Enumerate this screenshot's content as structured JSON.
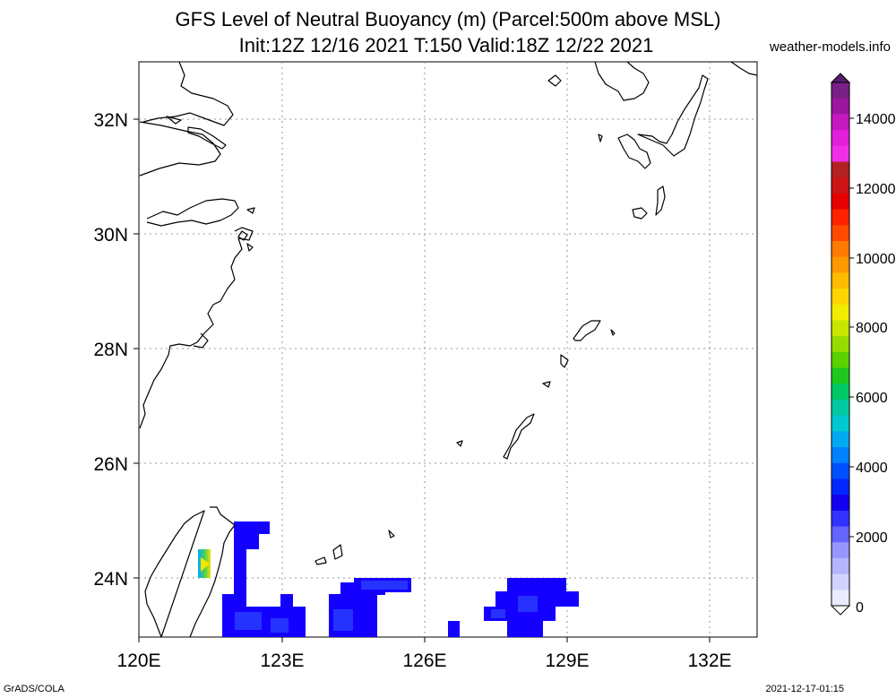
{
  "header": {
    "title_line1": "GFS Level of Neutral Buoyancy (m) (Parcel:500m above MSL)",
    "title_line2": "Init:12Z 12/16 2021 T:150 Valid:18Z 12/22 2021",
    "credit": "weather-models.info"
  },
  "footer": {
    "left": "GrADS/COLA",
    "right": "2021-12-17-01:15"
  },
  "map": {
    "lat_labels": [
      "32N",
      "30N",
      "28N",
      "26N",
      "24N"
    ],
    "lon_labels": [
      "120E",
      "123E",
      "126E",
      "129E",
      "132E"
    ]
  },
  "colorbar": {
    "labels": [
      "14000",
      "12000",
      "10000",
      "8000",
      "6000",
      "4000",
      "2000",
      "0"
    ],
    "colors": [
      "#7a1f86",
      "#9b159e",
      "#c419c0",
      "#e21fda",
      "#f02ee8",
      "#b22222",
      "#cc1414",
      "#e60000",
      "#ff2200",
      "#ff4a00",
      "#ff7a00",
      "#ff9900",
      "#ffbb00",
      "#ffd500",
      "#f2ec00",
      "#c8e600",
      "#96dc00",
      "#5ad200",
      "#1ec81e",
      "#00c864",
      "#00c8a0",
      "#00c8d2",
      "#00aaf0",
      "#0082ff",
      "#0050ff",
      "#0028ff",
      "#1400f0",
      "#3232ff",
      "#6464ff",
      "#9696ff",
      "#b4b4ff",
      "#d2d2ff",
      "#ebebff"
    ]
  },
  "colors": {
    "blue_dark": "#1400ff",
    "blue_mid": "#2a3cff",
    "blue_light": "#4060ff"
  }
}
